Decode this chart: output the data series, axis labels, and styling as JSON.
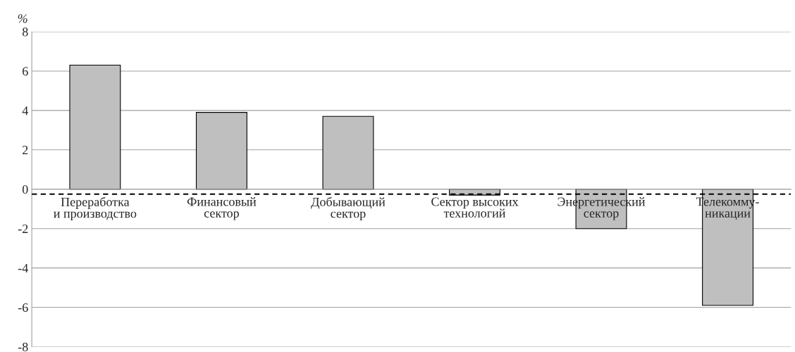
{
  "chart_data": {
    "type": "bar",
    "ylabel": "%",
    "categories": [
      "Переработка\nи производство",
      "Финансовый\nсектор",
      "Добывающий\nсектор",
      "Сектор высоких\nтехнологий",
      "Энергетический\nсектор",
      "Телекомму-\nникации"
    ],
    "values": [
      6.3,
      3.9,
      3.7,
      -0.3,
      -2.0,
      -5.9
    ],
    "color": "#bfbfbf",
    "ylim": [
      -8,
      8
    ],
    "yticks": [
      -8,
      -6,
      -4,
      -2,
      0,
      2,
      4,
      6,
      8
    ],
    "grid": "y",
    "legend": false,
    "ref_lines": [
      {
        "axis": "y",
        "value": -0.25,
        "line_style": "dashed",
        "color": "#000000"
      }
    ]
  }
}
